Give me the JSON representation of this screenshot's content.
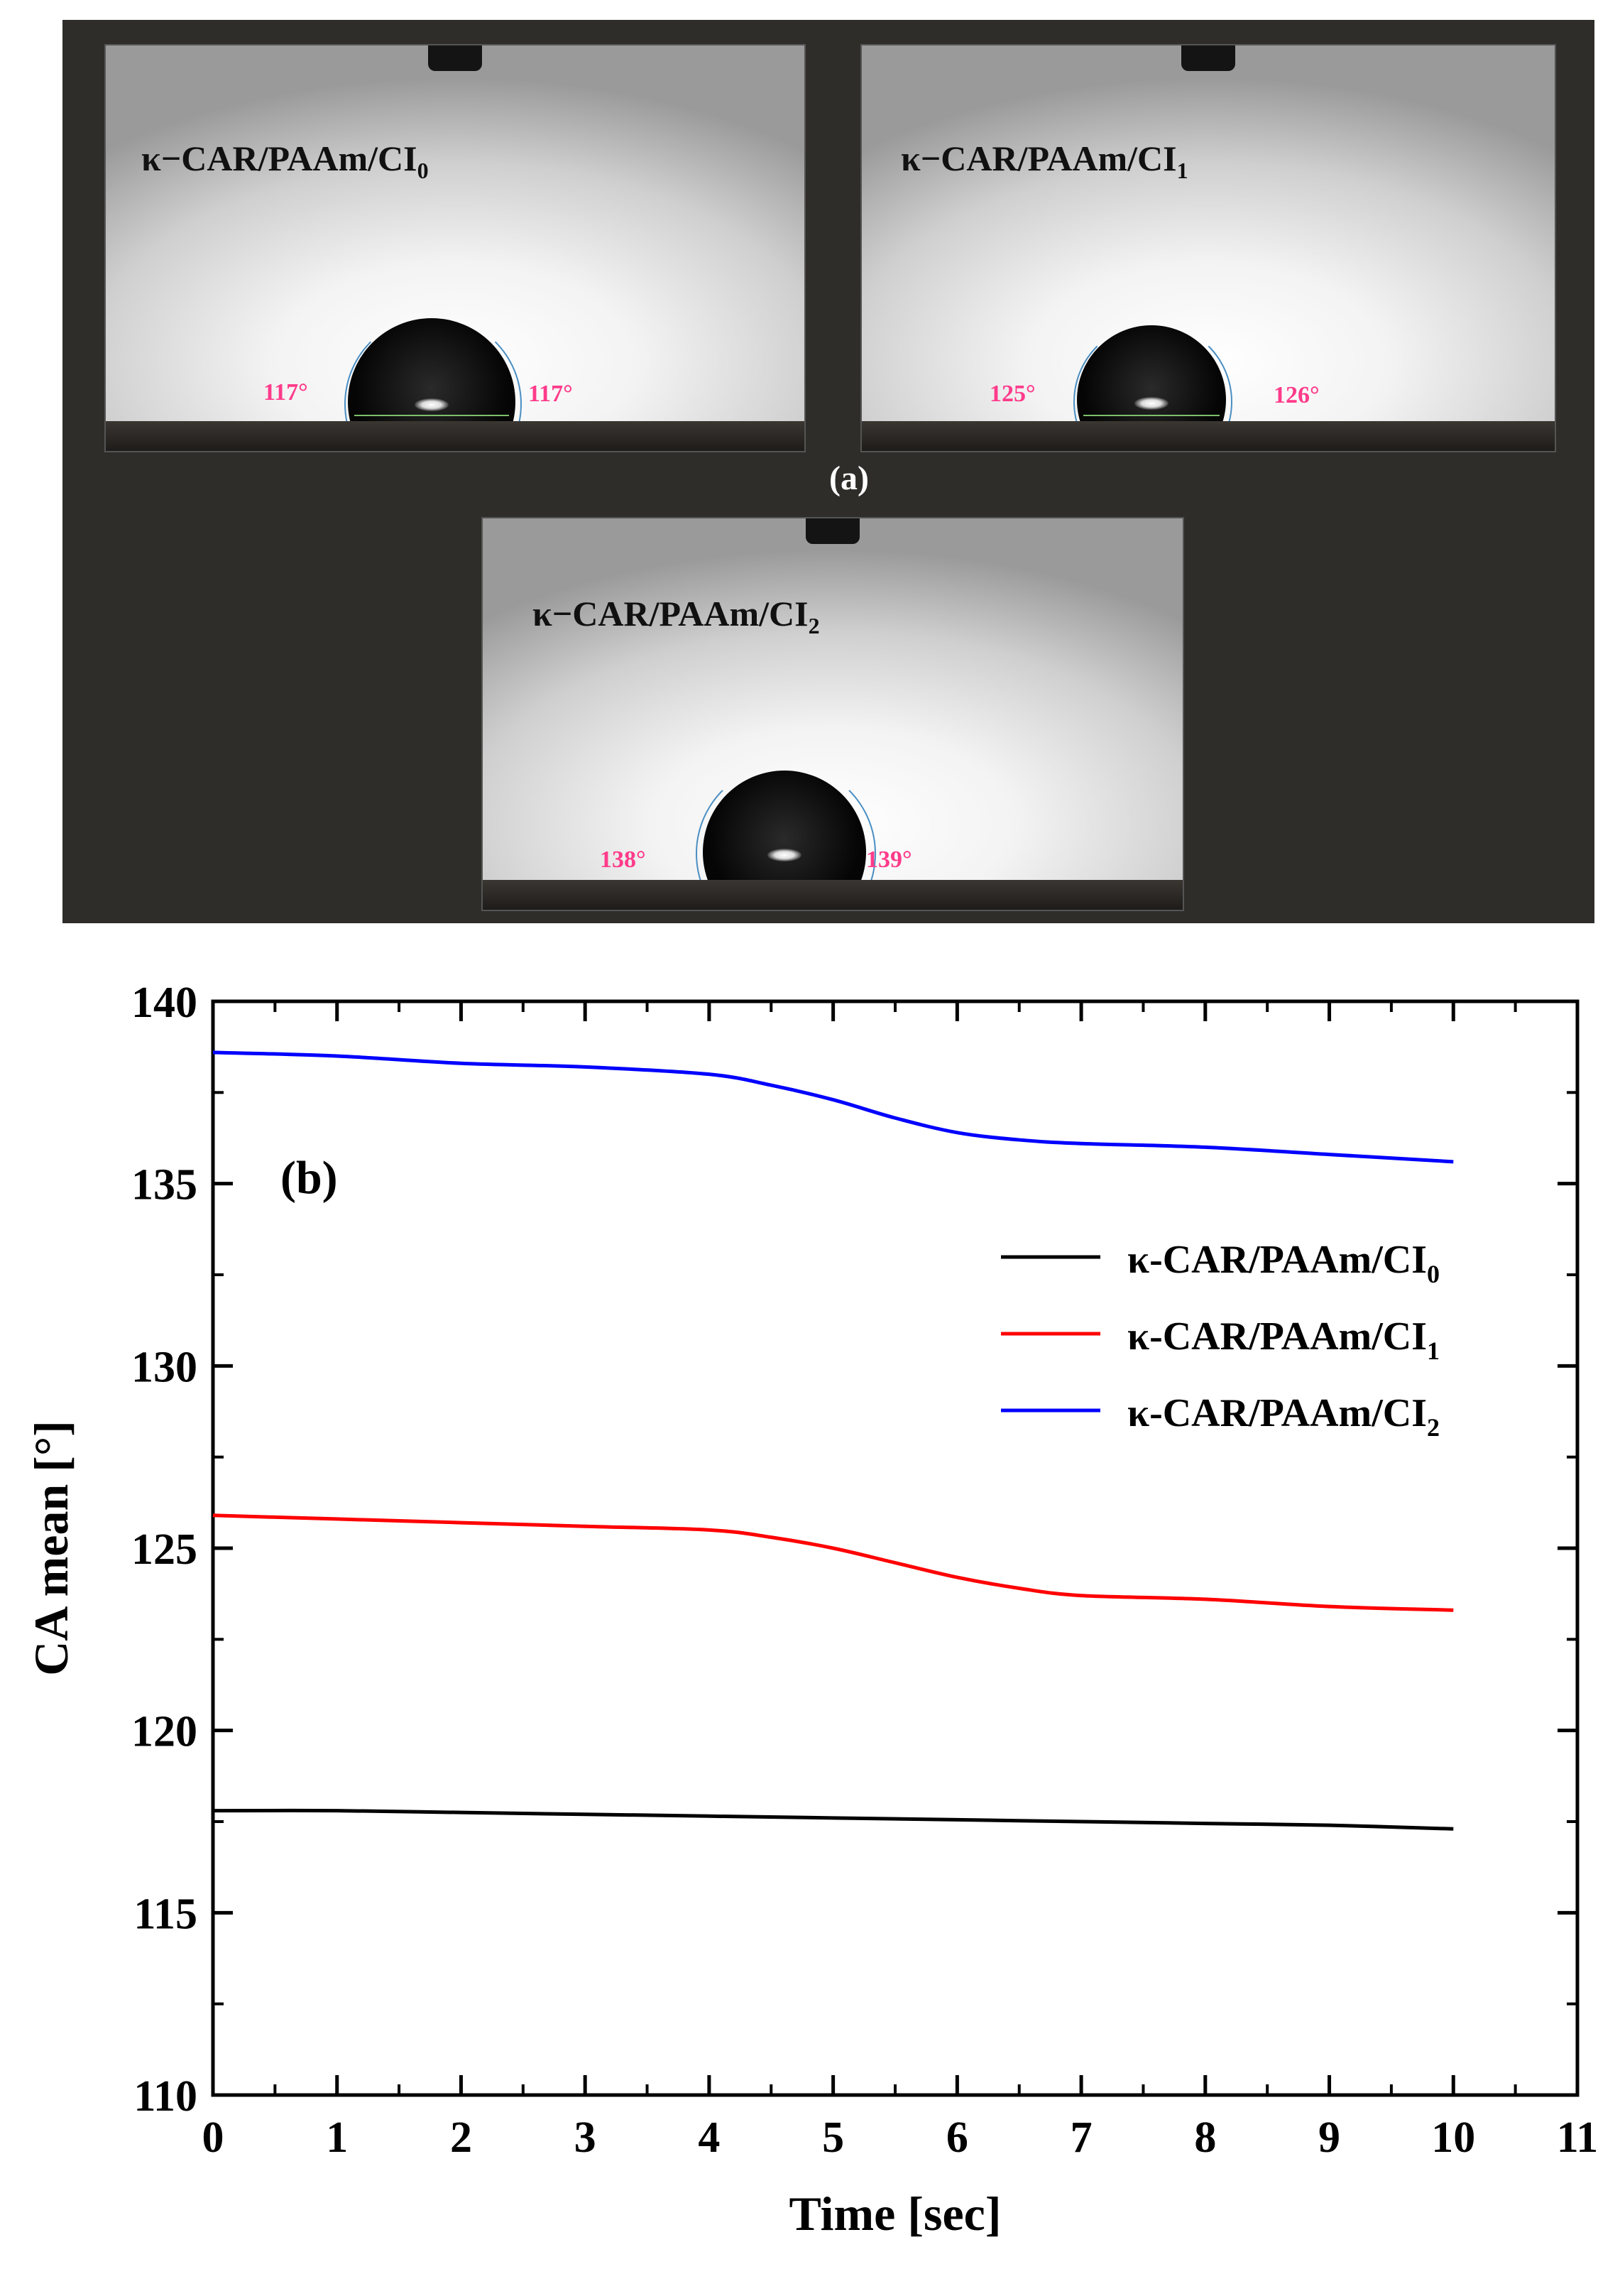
{
  "panel_a": {
    "tag": "(a)",
    "photos": [
      {
        "label": "κ−CAR/PAAm/CI",
        "subscript": "0",
        "angle_left": "117°",
        "angle_right": "117°"
      },
      {
        "label": "κ−CAR/PAAm/CI",
        "subscript": "1",
        "angle_left": "125°",
        "angle_right": "126°"
      },
      {
        "label": "κ−CAR/PAAm/CI",
        "subscript": "2",
        "angle_left": "138°",
        "angle_right": "139°"
      }
    ]
  },
  "chart_data": {
    "type": "line",
    "panel_tag": "(b)",
    "xlabel": "Time [sec]",
    "ylabel": "CA mean [°]",
    "xlim": [
      0,
      11
    ],
    "ylim": [
      110,
      140
    ],
    "xticks": [
      "0",
      "1",
      "2",
      "3",
      "4",
      "5",
      "6",
      "7",
      "8",
      "9",
      "10",
      "11"
    ],
    "yticks": [
      "110",
      "115",
      "120",
      "125",
      "130",
      "135",
      "140"
    ],
    "grid": false,
    "legend_position": "right",
    "series": [
      {
        "name": "κ-CAR/PAAm/CI",
        "subscript": "0",
        "color": "#000000",
        "x": [
          0,
          1,
          2,
          3,
          4,
          5,
          6,
          7,
          8,
          9,
          10
        ],
        "y": [
          117.8,
          117.8,
          117.75,
          117.7,
          117.65,
          117.6,
          117.55,
          117.5,
          117.45,
          117.4,
          117.3
        ]
      },
      {
        "name": "κ-CAR/PAAm/CI",
        "subscript": "1",
        "color": "#ff0000",
        "x": [
          0,
          1,
          2,
          3,
          4,
          4.5,
          5,
          5.5,
          6,
          6.5,
          7,
          8,
          9,
          10
        ],
        "y": [
          125.9,
          125.8,
          125.7,
          125.6,
          125.5,
          125.3,
          125.0,
          124.6,
          124.2,
          123.9,
          123.7,
          123.6,
          123.4,
          123.3
        ]
      },
      {
        "name": "κ-CAR/PAAm/CI",
        "subscript": "2",
        "color": "#0000ff",
        "x": [
          0,
          1,
          2,
          3,
          4,
          4.5,
          5,
          5.5,
          6,
          6.5,
          7,
          8,
          9,
          10
        ],
        "y": [
          138.6,
          138.5,
          138.3,
          138.2,
          138.0,
          137.7,
          137.3,
          136.8,
          136.4,
          136.2,
          136.1,
          136.0,
          135.8,
          135.6
        ]
      }
    ]
  }
}
